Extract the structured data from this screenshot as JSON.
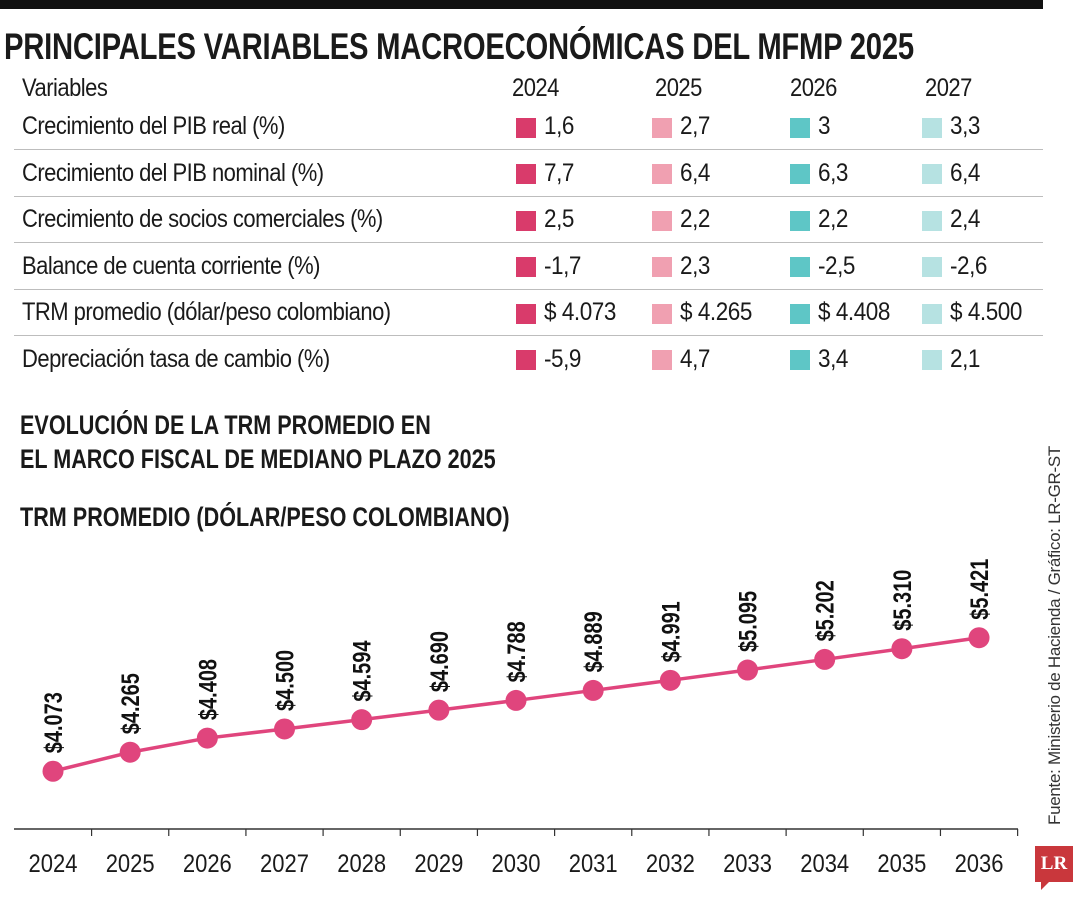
{
  "title": "PRINCIPALES VARIABLES MACROECONÓMICAS DEL MFMP 2025",
  "table": {
    "header": {
      "label": "Variables",
      "years": [
        "2024",
        "2025",
        "2026",
        "2027"
      ]
    },
    "year_colors": [
      "#d93b6b",
      "#f0a0b1",
      "#5ec6c6",
      "#b6e2e2"
    ],
    "rows": [
      {
        "label": "Crecimiento del PIB real (%)",
        "values": [
          "1,6",
          "2,7",
          "3",
          "3,3"
        ]
      },
      {
        "label": "Crecimiento del PIB nominal (%)",
        "values": [
          "7,7",
          "6,4",
          "6,3",
          "6,4"
        ]
      },
      {
        "label": "Crecimiento de socios comerciales (%)",
        "values": [
          "2,5",
          "2,2",
          "2,2",
          "2,4"
        ]
      },
      {
        "label": "Balance de cuenta corriente (%)",
        "values": [
          "-1,7",
          "2,3",
          "-2,5",
          "-2,6"
        ]
      },
      {
        "label": "TRM promedio (dólar/peso colombiano)",
        "values": [
          "$ 4.073",
          "$ 4.265",
          "$ 4.408",
          "$ 4.500"
        ]
      },
      {
        "label": "Depreciación tasa de cambio (%)",
        "values": [
          "-5,9",
          "4,7",
          "3,4",
          "2,1"
        ]
      }
    ]
  },
  "chart_heading": [
    "EVOLUCIÓN DE LA TRM PROMEDIO EN",
    "EL MARCO FISCAL DE MEDIANO PLAZO 2025"
  ],
  "chart_data": {
    "type": "line",
    "title": "TRM PROMEDIO (DÓLAR/PESO COLOMBIANO)",
    "categories": [
      "2024",
      "2025",
      "2026",
      "2027",
      "2028",
      "2029",
      "2030",
      "2031",
      "2032",
      "2033",
      "2034",
      "2035",
      "2036"
    ],
    "values": [
      4073,
      4265,
      4408,
      4500,
      4594,
      4690,
      4788,
      4889,
      4991,
      5095,
      5202,
      5310,
      5421
    ],
    "data_labels": [
      "$4.073",
      "$4.265",
      "$4.408",
      "$4.500",
      "$4.594",
      "$4.690",
      "$4.788",
      "$4.889",
      "$4.991",
      "$5.095",
      "$5.202",
      "$5.310",
      "$5.421"
    ],
    "ylim": [
      3490,
      5600
    ],
    "grid": false,
    "color": "#e0457d"
  },
  "source": "Fuente: Ministerio de Hacienda / Gráfico: LR-GR-ST",
  "logo": "LR"
}
